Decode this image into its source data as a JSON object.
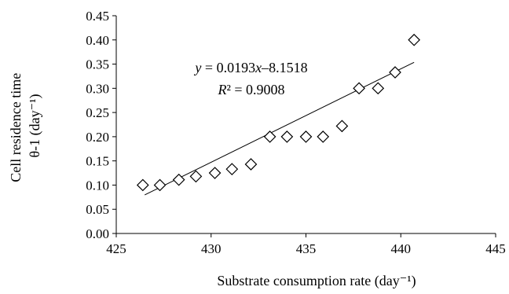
{
  "chart_data": {
    "type": "scatter",
    "title": "",
    "xlabel": "Substrate consumption rate (day⁻¹)",
    "ylabel_line1": "Cell residence time",
    "ylabel_line2": "θ-1 (day⁻¹)",
    "xlim": [
      425,
      445
    ],
    "ylim": [
      0,
      0.45
    ],
    "xticks": [
      425,
      430,
      435,
      440,
      445
    ],
    "yticks": [
      0.0,
      0.05,
      0.1,
      0.15,
      0.2,
      0.25,
      0.3,
      0.35,
      0.4,
      0.45
    ],
    "xtick_labels": [
      "425",
      "430",
      "435",
      "440",
      "445"
    ],
    "ytick_labels": [
      "0.00",
      "0.05",
      "0.10",
      "0.15",
      "0.20",
      "0.25",
      "0.30",
      "0.35",
      "0.40",
      "0.45"
    ],
    "marker": "diamond",
    "grid": false,
    "series": [
      {
        "points": [
          [
            426.4,
            0.1
          ],
          [
            427.3,
            0.1
          ],
          [
            428.3,
            0.111
          ],
          [
            429.2,
            0.118
          ],
          [
            430.2,
            0.125
          ],
          [
            431.1,
            0.133
          ],
          [
            432.1,
            0.143
          ],
          [
            433.1,
            0.2
          ],
          [
            434.0,
            0.2
          ],
          [
            435.0,
            0.2
          ],
          [
            435.9,
            0.2
          ],
          [
            436.9,
            0.222
          ],
          [
            437.8,
            0.3
          ],
          [
            438.8,
            0.3
          ],
          [
            439.7,
            0.333
          ],
          [
            440.7,
            0.4
          ]
        ]
      }
    ],
    "trendline": {
      "slope": 0.0193,
      "intercept": -8.1518,
      "x_range": [
        426.5,
        440.7
      ],
      "equation_label": "y = 0.0193x–8.1518",
      "r2_label": "R² = 0.9008"
    }
  }
}
